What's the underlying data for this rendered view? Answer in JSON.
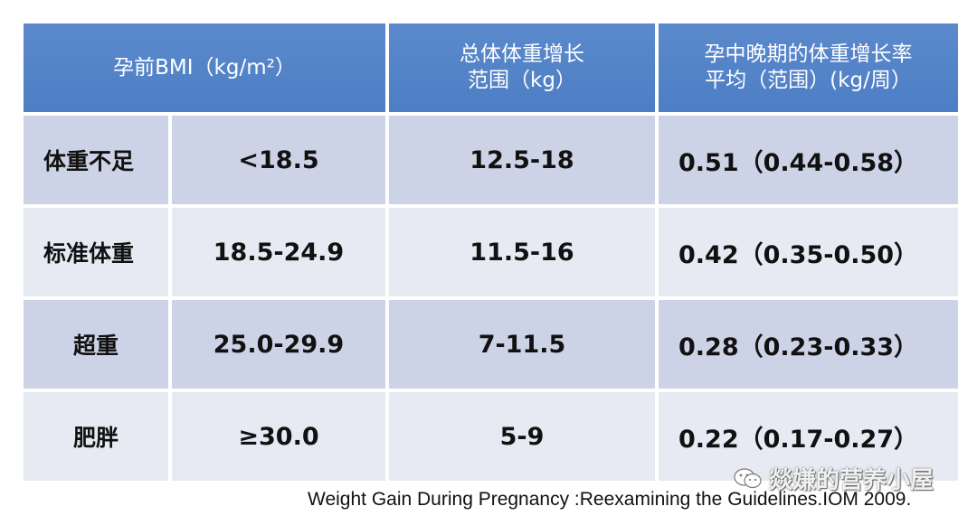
{
  "table": {
    "headers": {
      "bmi": "孕前BMI（kg/m²）",
      "total_line1": "总体体重增长",
      "total_line2": "范围（kg）",
      "rate_line1": "孕中晚期的体重增长率",
      "rate_line2": "平均（范围）(kg/周）"
    },
    "rows": [
      {
        "category": "体重不足",
        "bmi": "<18.5",
        "total": "12.5-18",
        "rate": "0.51（0.44-0.58）"
      },
      {
        "category": "标准体重",
        "bmi": "18.5-24.9",
        "total": "11.5-16",
        "rate": "0.42（0.35-0.50）"
      },
      {
        "category": "超重",
        "bmi": "25.0-29.9",
        "total": "7-11.5",
        "rate": "0.28（0.23-0.33）"
      },
      {
        "category": "肥胖",
        "bmi": "≥30.0",
        "total": "5-9",
        "rate": "0.22（0.17-0.27）"
      }
    ]
  },
  "citation": "Weight Gain During Pregnancy :Reexamining the Guidelines.IOM 2009.",
  "watermark": {
    "text": "燚嫌的营养小屋",
    "icon": "wechat-icon"
  },
  "colors": {
    "header_bg": "#4f80c6",
    "row_dark": "#cdd3e6",
    "row_light": "#e7eaf3"
  }
}
